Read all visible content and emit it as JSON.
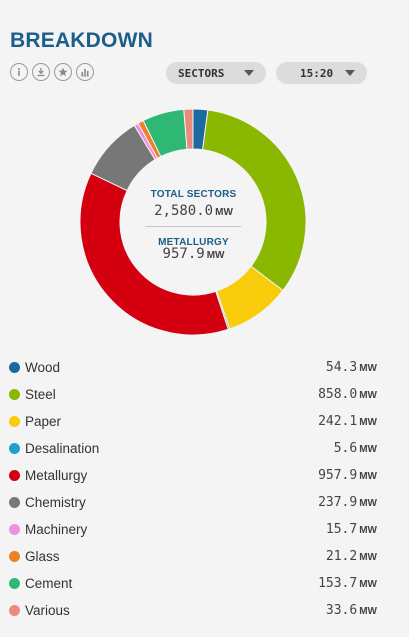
{
  "header": {
    "title": "BREAKDOWN",
    "icons": [
      "info-icon",
      "download-icon",
      "star-icon",
      "bar-chart-icon"
    ]
  },
  "controls": {
    "sectors_label": "SECTORS",
    "time_label": "15:20"
  },
  "center": {
    "total_label": "TOTAL SECTORS",
    "total_value": "2,580.0",
    "total_unit": "MW",
    "selected_label": "METALLURGY",
    "selected_value": "957.9",
    "selected_unit": "MW"
  },
  "chart_data": {
    "type": "pie",
    "variant": "donut",
    "unit": "MW",
    "selected": "Metallurgy",
    "series": [
      {
        "name": "Wood",
        "value": 54.3,
        "display": "54.3",
        "color": "#1a6aa0"
      },
      {
        "name": "Steel",
        "value": 858.0,
        "display": "858.0",
        "color": "#8ab800"
      },
      {
        "name": "Paper",
        "value": 242.1,
        "display": "242.1",
        "color": "#f8cc0a"
      },
      {
        "name": "Desalination",
        "value": 5.6,
        "display": "5.6",
        "color": "#1ea0cf"
      },
      {
        "name": "Metallurgy",
        "value": 957.9,
        "display": "957.9",
        "color": "#d4000f"
      },
      {
        "name": "Chemistry",
        "value": 237.9,
        "display": "237.9",
        "color": "#777777"
      },
      {
        "name": "Machinery",
        "value": 15.7,
        "display": "15.7",
        "color": "#f08ee6"
      },
      {
        "name": "Glass",
        "value": 21.2,
        "display": "21.2",
        "color": "#ee8222"
      },
      {
        "name": "Cement",
        "value": 153.7,
        "display": "153.7",
        "color": "#2fb874"
      },
      {
        "name": "Various",
        "value": 33.6,
        "display": "33.6",
        "color": "#ec8a7c"
      }
    ]
  }
}
